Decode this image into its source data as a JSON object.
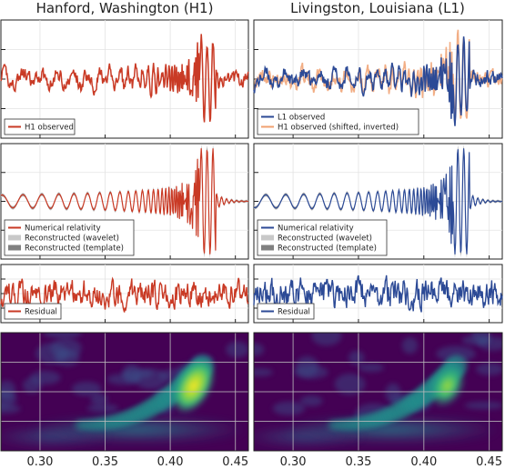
{
  "columns": [
    {
      "title": "Hanford, Washington (H1)",
      "color": "#c93a25"
    },
    {
      "title": "Livingston, Louisiana (L1)",
      "color": "#2c4a96"
    }
  ],
  "colors": {
    "h1": "#c93a25",
    "l1": "#2c4a96",
    "h1_shifted": "#f0a070",
    "wavelet_band": "#c8c8c8",
    "template_band": "#808080"
  },
  "chart_data": [
    {
      "type": "line",
      "row": "observed",
      "column": "H1",
      "xlim": [
        0.27,
        0.46
      ],
      "series": [
        {
          "name": "H1 observed",
          "color": "#c93a25",
          "kind": "observed"
        }
      ]
    },
    {
      "type": "line",
      "row": "observed",
      "column": "L1",
      "xlim": [
        0.27,
        0.46
      ],
      "series": [
        {
          "name": "L1 observed",
          "color": "#2c4a96",
          "kind": "observed"
        },
        {
          "name": "H1 observed (shifted, inverted)",
          "color": "#f0a070",
          "kind": "shifted"
        }
      ]
    },
    {
      "type": "line",
      "row": "reconstructed",
      "column": "H1",
      "xlim": [
        0.27,
        0.46
      ],
      "series": [
        {
          "name": "Numerical relativity",
          "color": "#c93a25",
          "kind": "nr"
        },
        {
          "name": "Reconstructed (wavelet)",
          "color": "#c8c8c8",
          "kind": "band"
        },
        {
          "name": "Reconstructed (template)",
          "color": "#808080",
          "kind": "band2"
        }
      ]
    },
    {
      "type": "line",
      "row": "reconstructed",
      "column": "L1",
      "xlim": [
        0.27,
        0.46
      ],
      "series": [
        {
          "name": "Numerical relativity",
          "color": "#2c4a96",
          "kind": "nr"
        },
        {
          "name": "Reconstructed (wavelet)",
          "color": "#c8c8c8",
          "kind": "band"
        },
        {
          "name": "Reconstructed (template)",
          "color": "#808080",
          "kind": "band2"
        }
      ]
    },
    {
      "type": "line",
      "row": "residual",
      "column": "H1",
      "xlim": [
        0.27,
        0.46
      ],
      "series": [
        {
          "name": "Residual",
          "color": "#c93a25",
          "kind": "residual"
        }
      ]
    },
    {
      "type": "line",
      "row": "residual",
      "column": "L1",
      "xlim": [
        0.27,
        0.46
      ],
      "series": [
        {
          "name": "Residual",
          "color": "#2c4a96",
          "kind": "residual"
        }
      ]
    },
    {
      "type": "heatmap",
      "row": "spectrogram",
      "column": "H1",
      "xlim": [
        0.27,
        0.46
      ],
      "colormap": "viridis",
      "grid": true
    },
    {
      "type": "heatmap",
      "row": "spectrogram",
      "column": "L1",
      "xlim": [
        0.27,
        0.46
      ],
      "colormap": "viridis",
      "grid": true
    }
  ],
  "x_ticks": [
    "0.30",
    "0.35",
    "0.40",
    "0.45"
  ],
  "x_tick_values": [
    0.3,
    0.35,
    0.4,
    0.45
  ]
}
